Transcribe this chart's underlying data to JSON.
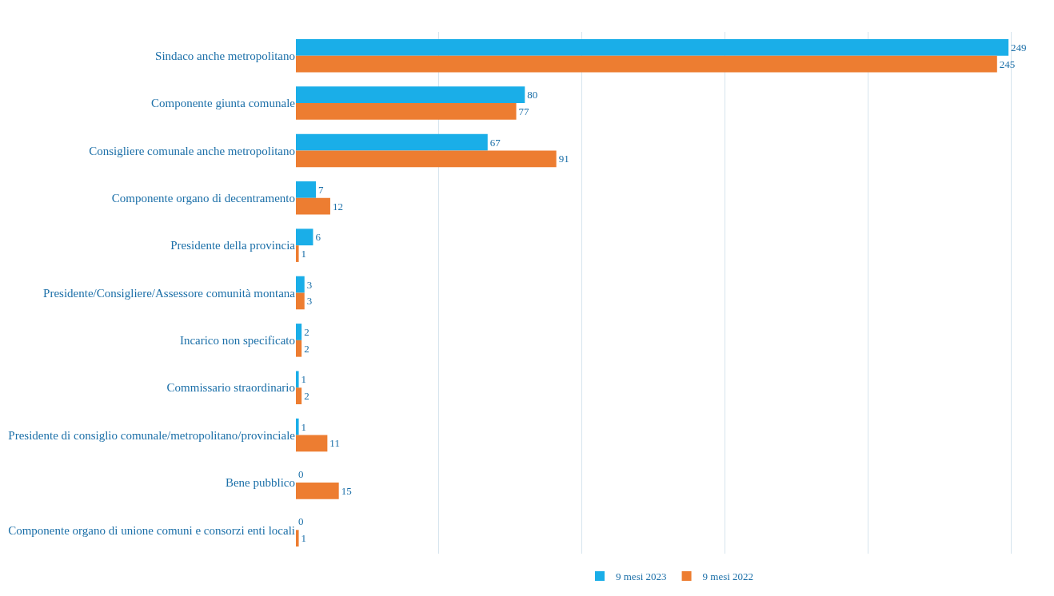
{
  "chart_data": {
    "type": "bar",
    "orientation": "horizontal",
    "categories": [
      "Sindaco anche metropolitano",
      "Componente giunta comunale",
      "Consigliere comunale anche metropolitano",
      "Componente organo di decentramento",
      "Presidente della provincia",
      "Presidente/Consigliere/Assessore comunità montana",
      "Incarico non specificato",
      "Commissario straordinario",
      "Presidente di consiglio comunale/metropolitano/provinciale",
      "Bene pubblico",
      "Componente organo di unione comuni e consorzi enti locali"
    ],
    "series": [
      {
        "name": "9 mesi 2023",
        "color": "#1aaee8",
        "values": [
          249,
          80,
          67,
          7,
          6,
          3,
          2,
          1,
          1,
          0,
          0
        ]
      },
      {
        "name": "9 mesi 2022",
        "color": "#ed7d31",
        "values": [
          245,
          77,
          91,
          12,
          1,
          3,
          2,
          2,
          11,
          15,
          1
        ]
      }
    ],
    "tick_labels": "y",
    "grid": "x",
    "legend": "bottom",
    "data_labels": true
  }
}
